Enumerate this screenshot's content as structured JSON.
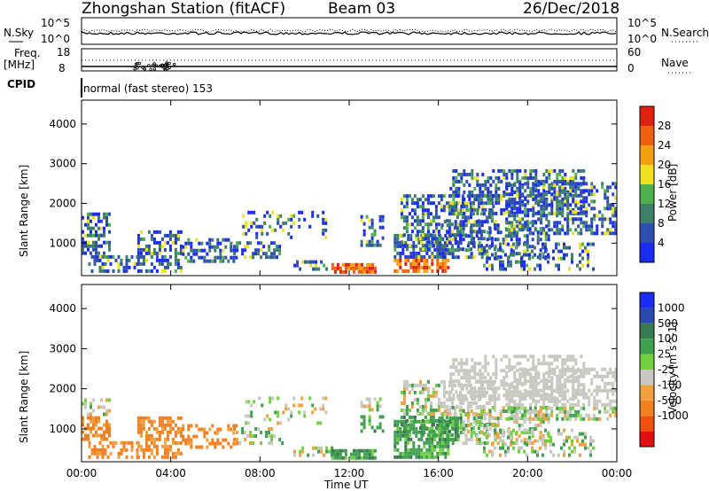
{
  "header": {
    "station": "Zhongshan Station (fitACF)",
    "beam": "Beam 03",
    "date": "26/Dec/2018"
  },
  "noise_panel": {
    "left_label": "N.Sky",
    "left_ticks": [
      "10^5",
      "10^0"
    ],
    "right_label": "N.Search",
    "right_ticks": [
      "10^5",
      "10^0"
    ]
  },
  "freq_panel": {
    "left_label_1": "Freq.",
    "left_label_2": "[MHz]",
    "left_ticks": [
      "18",
      "8"
    ],
    "right_label": "Nave",
    "right_ticks": [
      "60",
      "0"
    ]
  },
  "cpid_panel": {
    "label": "CPID",
    "text": "normal (fast stereo) 153"
  },
  "colors": {
    "power": [
      "#1a2cf0",
      "#2f4fb0",
      "#3f7f6a",
      "#50b050",
      "#f0e020",
      "#f0a010",
      "#f06010",
      "#e02010"
    ],
    "velocity": [
      "#e01010",
      "#f05010",
      "#f08020",
      "#f0a040",
      "#c8c8c0",
      "#70d040",
      "#40a050",
      "#3a7a50",
      "#2a4ab0",
      "#1a2cf0"
    ]
  },
  "chart_data": [
    {
      "type": "heatmap",
      "title": "",
      "ylabel": "Slant Range [km]",
      "xlabel": "",
      "yticks": [
        "1000",
        "2000",
        "3000",
        "4000"
      ],
      "ylim": [
        180,
        4600
      ],
      "xlim": [
        "00:00",
        "24:00"
      ],
      "colorbar": {
        "label": "Power [dB]",
        "ticks": [
          "4",
          "8",
          "12",
          "16",
          "20",
          "24",
          "28"
        ],
        "range": [
          0,
          30
        ]
      }
    },
    {
      "type": "heatmap",
      "title": "",
      "ylabel": "Slant Range [km]",
      "xlabel": "Time UT",
      "yticks": [
        "1000",
        "2000",
        "3000",
        "4000"
      ],
      "xticks": [
        "00:00",
        "04:00",
        "08:00",
        "12:00",
        "16:00",
        "20:00",
        "00:00"
      ],
      "ylim": [
        180,
        4600
      ],
      "xlim": [
        "00:00",
        "24:00"
      ],
      "colorbar": {
        "label": "Velocity [m s^-1]",
        "ticks": [
          "1000",
          "500",
          "100",
          "25",
          "-25",
          "-100",
          "-500",
          "-1000"
        ]
      }
    }
  ]
}
